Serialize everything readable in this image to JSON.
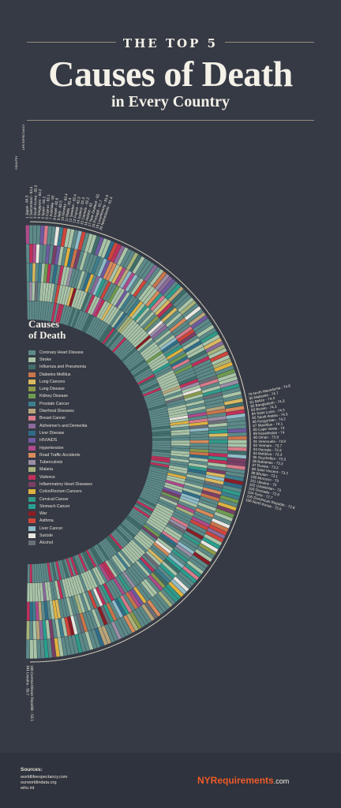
{
  "header": {
    "kicker": "THE TOP 5",
    "title": "Causes of Death",
    "subtitle": "in Every Country"
  },
  "column_headers": {
    "country": "COUNTRY",
    "life_expectancy": "LIFE EXPECTANCY"
  },
  "legend": {
    "title_line1": "Causes",
    "title_line2": "of Death",
    "items": [
      {
        "label": "Coronary Heart Disease",
        "color": "#5c8a88"
      },
      {
        "label": "Stroke",
        "color": "#a9c4a7"
      },
      {
        "label": "Influenza and Pneumonia",
        "color": "#3f6e6a"
      },
      {
        "label": "Diabetes Mellitus",
        "color": "#c9754a"
      },
      {
        "label": "Lung Cancers",
        "color": "#d9b95f"
      },
      {
        "label": "Lung Disease",
        "color": "#8a9a4a"
      },
      {
        "label": "Kidney Disease",
        "color": "#6f9c4f"
      },
      {
        "label": "Prostate Cancer",
        "color": "#3d7e8e"
      },
      {
        "label": "Diarrheal Diseases",
        "color": "#b9a57a"
      },
      {
        "label": "Breast Cancer",
        "color": "#d87b8a"
      },
      {
        "label": "Alzheimer's and Dementia",
        "color": "#8b6a9a"
      },
      {
        "label": "Liver Disease",
        "color": "#2e6d88"
      },
      {
        "label": "HIV/AIDS",
        "color": "#6f5aa0"
      },
      {
        "label": "Hypertension",
        "color": "#b04a8a"
      },
      {
        "label": "Road Traffic Accidents",
        "color": "#d98b5a"
      },
      {
        "label": "Tuberculosis",
        "color": "#9a8ea6"
      },
      {
        "label": "Malaria",
        "color": "#a7b37a"
      },
      {
        "label": "Violence",
        "color": "#c0305a"
      },
      {
        "label": "Inflammatory Heart Diseases",
        "color": "#7a3f66"
      },
      {
        "label": "Colon/Rectum Cancers",
        "color": "#e0b23f"
      },
      {
        "label": "Cervical Cancer",
        "color": "#2f9b8a"
      },
      {
        "label": "Stomach Cancer",
        "color": "#28a08f"
      },
      {
        "label": "War",
        "color": "#8a1d24"
      },
      {
        "label": "Asthma",
        "color": "#d0453a"
      },
      {
        "label": "Liver Cancer",
        "color": "#8fbcc8"
      },
      {
        "label": "Suicide",
        "color": "#e8e6df"
      },
      {
        "label": "Alcohol",
        "color": "#6a6e76"
      }
    ]
  },
  "chart_data": {
    "type": "radial-stacked-bar",
    "countries_labeled": [
      {
        "rank": 1,
        "country": "Japan",
        "life_expectancy": 84.3
      },
      {
        "rank": 2,
        "country": "Switzerland",
        "life_expectancy": 83.4
      },
      {
        "rank": 3,
        "country": "South Korea",
        "life_expectancy": 83.3
      },
      {
        "rank": 4,
        "country": "Singapore",
        "life_expectancy": 83.2
      },
      {
        "rank": 5,
        "country": "Spain",
        "life_expectancy": 83.2
      },
      {
        "rank": 6,
        "country": "Cyprus",
        "life_expectancy": 83.1
      },
      {
        "rank": 7,
        "country": "Australia",
        "life_expectancy": 83.0
      },
      {
        "rank": 8,
        "country": "Israel",
        "life_expectancy": 82.6
      },
      {
        "rank": 9,
        "country": "Italy",
        "life_expectancy": 82.5
      },
      {
        "rank": 10,
        "country": "Norway",
        "life_expectancy": 82.4
      },
      {
        "rank": 11,
        "country": "Malta",
        "life_expectancy": 82.4
      },
      {
        "rank": 12,
        "country": "Sweden",
        "life_expectancy": 82.4
      },
      {
        "rank": 13,
        "country": "France",
        "life_expectancy": 82.3
      },
      {
        "rank": 14,
        "country": "Iceland",
        "life_expectancy": 82.3
      },
      {
        "rank": 15,
        "country": "Canada",
        "life_expectancy": 82.2
      },
      {
        "rank": 16,
        "country": "Ireland",
        "life_expectancy": 82.0
      },
      {
        "rank": 17,
        "country": "New Zealand",
        "life_expectancy": 82.0
      },
      {
        "rank": 18,
        "country": "Portugal",
        "life_expectancy": 81.7
      },
      {
        "rank": 19,
        "country": "Luxembourg",
        "life_expectancy": 81.6
      },
      {
        "rank": 20,
        "country": "Netherlands",
        "life_expectancy": 81.4
      },
      {
        "rank": 79,
        "country": "North Macedonia",
        "life_expectancy": 74.8
      },
      {
        "rank": 80,
        "country": "Malaysia",
        "life_expectancy": 74.7
      },
      {
        "rank": 81,
        "country": "Belize",
        "life_expectancy": 74.4
      },
      {
        "rank": 82,
        "country": "Bangladesh",
        "life_expectancy": 74.3
      },
      {
        "rank": 83,
        "country": "Brunei",
        "life_expectancy": 74.3
      },
      {
        "rank": 84,
        "country": "Saint Lucia",
        "life_expectancy": 74.3
      },
      {
        "rank": 85,
        "country": "Saudi Arabia",
        "life_expectancy": 74.3
      },
      {
        "rank": 86,
        "country": "Kyrgyzstan",
        "life_expectancy": 74.2
      },
      {
        "rank": 87,
        "country": "Mauritius",
        "life_expectancy": 74.1
      },
      {
        "rank": 88,
        "country": "Cape Verde",
        "life_expectancy": 74.0
      },
      {
        "rank": 89,
        "country": "Kazakhstan",
        "life_expectancy": 74.0
      },
      {
        "rank": 90,
        "country": "Oman",
        "life_expectancy": 73.9
      },
      {
        "rank": 91,
        "country": "Venezuela",
        "life_expectancy": 73.9
      },
      {
        "rank": 92,
        "country": "Vietnam",
        "life_expectancy": 73.7
      },
      {
        "rank": 93,
        "country": "Georgia",
        "life_expectancy": 73.3
      },
      {
        "rank": 94,
        "country": "Moldova",
        "life_expectancy": 73.3
      },
      {
        "rank": 95,
        "country": "Seychelles",
        "life_expectancy": 73.3
      },
      {
        "rank": 96,
        "country": "Bahamas",
        "life_expectancy": 73.2
      },
      {
        "rank": 97,
        "country": "Russia",
        "life_expectancy": 73.2
      },
      {
        "rank": 98,
        "country": "Saint Vincent",
        "life_expectancy": 73.2
      },
      {
        "rank": 99,
        "country": "Bhutan",
        "life_expectancy": 73.1
      },
      {
        "rank": 100,
        "country": "Morocco",
        "life_expectancy": 73.0
      },
      {
        "rank": 101,
        "country": "Ukraine",
        "life_expectancy": 73.0
      },
      {
        "rank": 102,
        "country": "Uzbekistan",
        "life_expectancy": 73.0
      },
      {
        "rank": 103,
        "country": "Grenada",
        "life_expectancy": 72.9
      },
      {
        "rank": 104,
        "country": "Syria",
        "life_expectancy": 72.7
      },
      {
        "rank": 105,
        "country": "Dominican Republic",
        "life_expectancy": 72.8
      },
      {
        "rank": 106,
        "country": "North Korea",
        "life_expectancy": 72.6
      },
      {
        "rank": 180,
        "country": "Central African Republic",
        "life_expectancy": 53.1
      },
      {
        "rank": 181,
        "country": "Lesotho",
        "life_expectancy": 50.7
      }
    ],
    "total_countries": 181,
    "segments_per_country": 5,
    "note_palette_from_legend": true
  },
  "sources": {
    "title": "Sources:",
    "lines": [
      "worldlifeexpectancy.com",
      "ourworldindata.org",
      "who.int"
    ]
  },
  "brand": {
    "part1": "NYRe",
    "part2": "quirements",
    "suffix": ".com"
  }
}
